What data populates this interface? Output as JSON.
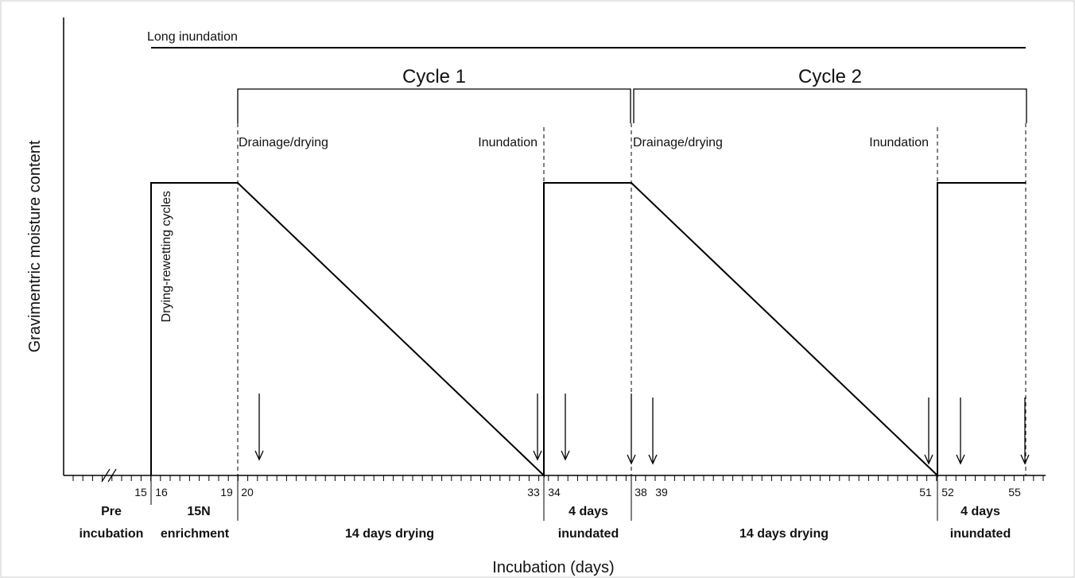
{
  "diagram": {
    "y_axis_label": "Gravimentric moisture content",
    "x_axis_label": "Incubation (days)",
    "long_inundation": "Long inundation",
    "cycles": [
      "Cycle 1",
      "Cycle 2"
    ],
    "drying_rewetting": "Drying-rewetting cycles",
    "stage_labels": [
      "Drainage/drying",
      "Inundation",
      "Drainage/drying",
      "Inundation"
    ],
    "ticks": [
      15,
      16,
      19,
      20,
      33,
      34,
      38,
      39,
      51,
      52,
      55
    ],
    "phases": [
      {
        "line1": "Pre",
        "line2": "incubation"
      },
      {
        "line1": "15N",
        "line2": "enrichment"
      },
      {
        "line2": "14 days drying"
      },
      {
        "line1": "4 days",
        "line2": "inundated"
      },
      {
        "line2": "14 days drying"
      },
      {
        "line1": "4 days",
        "line2": "inundated"
      }
    ]
  }
}
